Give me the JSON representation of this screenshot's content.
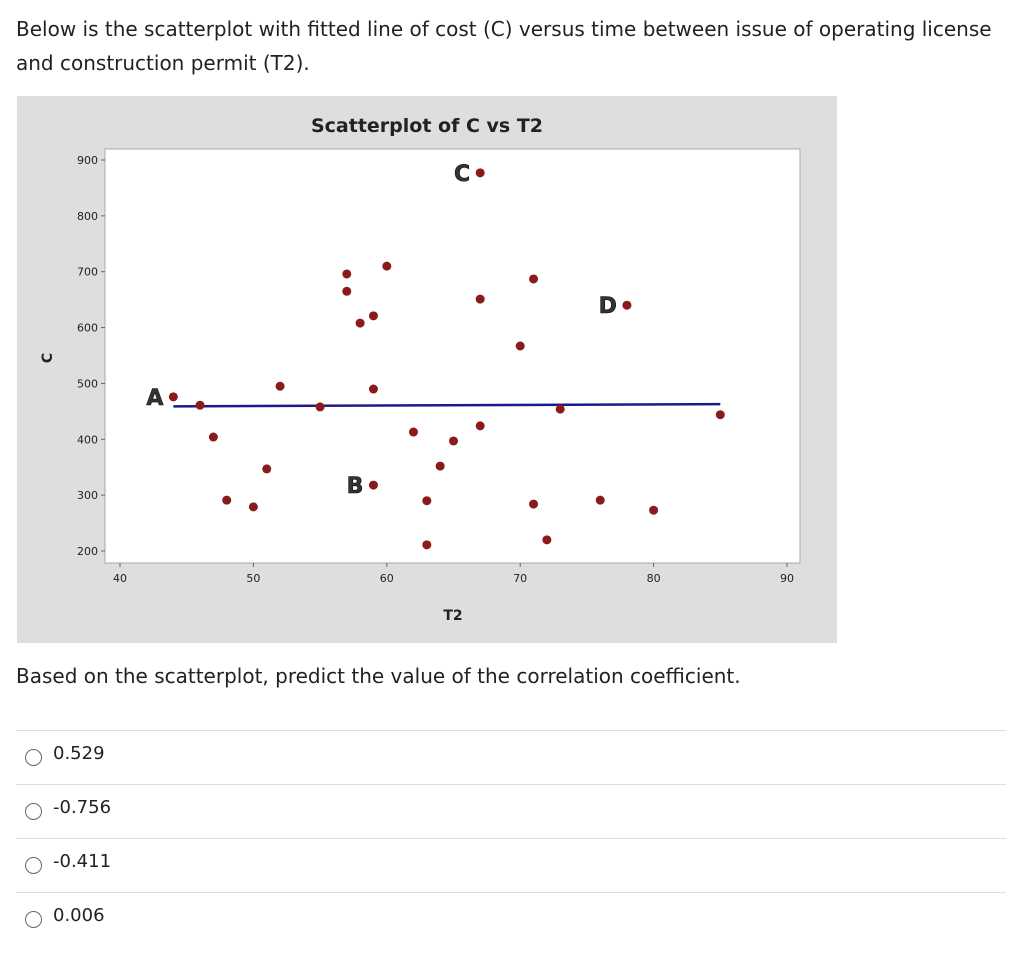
{
  "question": {
    "intro": "Below is the scatterplot with fitted line of cost (C) versus time between issue of operating license and construction permit (T2).",
    "prompt": "Based on the scatterplot, predict the value of the correlation coefficient."
  },
  "options": [
    {
      "label": "0.529",
      "selected": false
    },
    {
      "label": "-0.756",
      "selected": false
    },
    {
      "label": "-0.411",
      "selected": false
    },
    {
      "label": "0.006",
      "selected": false
    }
  ],
  "chart_data": {
    "type": "scatter",
    "title": "Scatterplot of C vs T2",
    "xlabel": "T2",
    "ylabel": "C",
    "xlim": [
      40,
      90
    ],
    "ylim": [
      200,
      900
    ],
    "xticks": [
      40,
      50,
      60,
      70,
      80,
      90
    ],
    "yticks": [
      200,
      300,
      400,
      500,
      600,
      700,
      800,
      900
    ],
    "grid": false,
    "colors": {
      "points": "#8b1a1a",
      "fit_line": "#1a1a8b",
      "panel": "#dedede"
    },
    "points": [
      {
        "x": 44,
        "y": 476,
        "label": "A"
      },
      {
        "x": 46,
        "y": 461
      },
      {
        "x": 47,
        "y": 404
      },
      {
        "x": 48,
        "y": 291
      },
      {
        "x": 50,
        "y": 279
      },
      {
        "x": 51,
        "y": 347
      },
      {
        "x": 52,
        "y": 495
      },
      {
        "x": 55,
        "y": 458
      },
      {
        "x": 57,
        "y": 696
      },
      {
        "x": 57,
        "y": 665
      },
      {
        "x": 58,
        "y": 608
      },
      {
        "x": 59,
        "y": 621
      },
      {
        "x": 60,
        "y": 710
      },
      {
        "x": 59,
        "y": 490
      },
      {
        "x": 59,
        "y": 318,
        "label": "B"
      },
      {
        "x": 62,
        "y": 413
      },
      {
        "x": 63,
        "y": 290
      },
      {
        "x": 63,
        "y": 211
      },
      {
        "x": 64,
        "y": 352
      },
      {
        "x": 65,
        "y": 397
      },
      {
        "x": 67,
        "y": 877,
        "label": "C"
      },
      {
        "x": 67,
        "y": 651
      },
      {
        "x": 67,
        "y": 424
      },
      {
        "x": 70,
        "y": 567
      },
      {
        "x": 71,
        "y": 687
      },
      {
        "x": 71,
        "y": 284
      },
      {
        "x": 72,
        "y": 220
      },
      {
        "x": 73,
        "y": 454
      },
      {
        "x": 76,
        "y": 291
      },
      {
        "x": 78,
        "y": 640,
        "label": "D"
      },
      {
        "x": 80,
        "y": 273
      },
      {
        "x": 85,
        "y": 444
      }
    ],
    "fit_line": {
      "x": [
        44,
        85
      ],
      "y": [
        459,
        463
      ]
    }
  }
}
